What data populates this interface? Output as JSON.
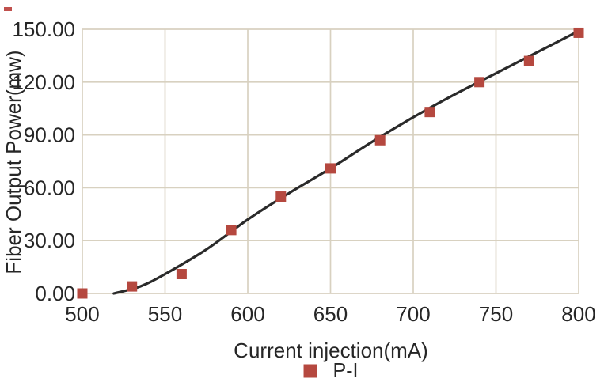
{
  "chart_data": {
    "type": "scatter",
    "title": "",
    "xlabel": "Current injection(mA)",
    "ylabel": "Fiber Output Power(mw)",
    "xlim": [
      500,
      800
    ],
    "ylim": [
      0,
      150
    ],
    "grid": true,
    "legend": {
      "label": "P-I",
      "position": "bottom"
    },
    "x_ticks": [
      {
        "value": 500,
        "label": "500"
      },
      {
        "value": 550,
        "label": "550"
      },
      {
        "value": 600,
        "label": "600"
      },
      {
        "value": 650,
        "label": "650"
      },
      {
        "value": 700,
        "label": "700"
      },
      {
        "value": 750,
        "label": "750"
      },
      {
        "value": 800,
        "label": "800"
      }
    ],
    "y_ticks": [
      {
        "value": 0,
        "label": "0.00"
      },
      {
        "value": 30,
        "label": "30.00"
      },
      {
        "value": 60,
        "label": "60.00"
      },
      {
        "value": 90,
        "label": "90.00"
      },
      {
        "value": 120,
        "label": "120.00"
      },
      {
        "value": 150,
        "label": "150.00"
      }
    ],
    "series": [
      {
        "name": "P-I",
        "marker": "square",
        "points": [
          [
            500,
            0
          ],
          [
            530,
            4
          ],
          [
            560,
            11
          ],
          [
            590,
            36
          ],
          [
            620,
            55
          ],
          [
            650,
            71
          ],
          [
            680,
            87
          ],
          [
            710,
            103
          ],
          [
            740,
            120
          ],
          [
            770,
            132
          ],
          [
            800,
            148
          ]
        ]
      }
    ],
    "trendline": {
      "points": [
        [
          519,
          0
        ],
        [
          535,
          4
        ],
        [
          550,
          11
        ],
        [
          575,
          25
        ],
        [
          600,
          42
        ],
        [
          625,
          57
        ],
        [
          650,
          71
        ],
        [
          675,
          86
        ],
        [
          700,
          100
        ],
        [
          725,
          113
        ],
        [
          750,
          125
        ],
        [
          775,
          137
        ],
        [
          800,
          149
        ]
      ]
    },
    "colors": {
      "marker": "#b5483f",
      "trend_line": "#2a2a2a",
      "grid": "#d8d1c0",
      "text": "#262626",
      "background": "#ffffff",
      "stray_mark": "#c0504d"
    }
  }
}
